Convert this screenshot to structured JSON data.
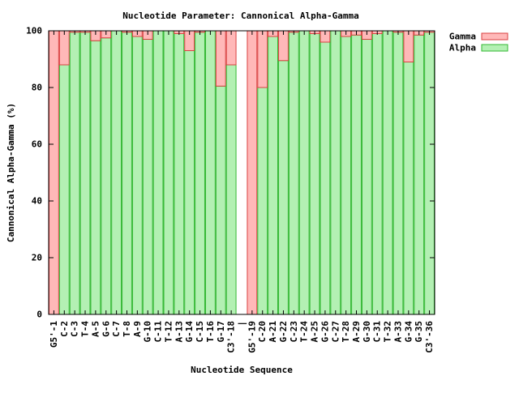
{
  "chart_data": {
    "type": "bar",
    "stacked": true,
    "title": "Nucleotide Parameter: Cannonical Alpha-Gamma",
    "xlabel": "Nucleotide Sequence",
    "ylabel": "Cannonical Alpha-Gamma (%)",
    "ylim": [
      0,
      100
    ],
    "yticks": [
      "0",
      "20",
      "40",
      "60",
      "80",
      "100"
    ],
    "grid": false,
    "legend_position": "top-right outside",
    "separator_label": "|",
    "series_colors": {
      "Alpha": {
        "fill": "#b3f0b3",
        "stroke": "#33b833"
      },
      "Gamma": {
        "fill": "#ffb8b8",
        "stroke": "#d94040"
      }
    },
    "legend": [
      {
        "name": "Gamma",
        "fill": "#ffb8b8",
        "stroke": "#d94040"
      },
      {
        "name": "Alpha",
        "fill": "#b3f0b3",
        "stroke": "#33b833"
      }
    ],
    "groups": [
      {
        "categories": [
          "G5'-1",
          "C-2",
          "C-3",
          "T-4",
          "A-5",
          "G-6",
          "C-7",
          "T-8",
          "A-9",
          "G-10",
          "C-11",
          "T-12",
          "A-13",
          "G-14",
          "C-15",
          "T-16",
          "G-17",
          "C3'-18"
        ],
        "series": [
          {
            "name": "Alpha",
            "values": [
              0,
              88,
              99.5,
              99.5,
              96.5,
              97.5,
              100,
              99.5,
              98,
              97,
              100,
              100,
              99,
              93,
              99.5,
              100,
              80.5,
              88
            ]
          },
          {
            "name": "Gamma",
            "values": [
              100,
              12,
              0.5,
              0.5,
              3.5,
              2.5,
              0,
              0.5,
              2,
              3,
              0,
              0,
              1,
              7,
              0.5,
              0,
              19.5,
              12
            ]
          }
        ]
      },
      {
        "categories": [
          "G5'-19",
          "C-20",
          "A-21",
          "G-22",
          "C-23",
          "T-24",
          "A-25",
          "G-26",
          "C-27",
          "T-28",
          "A-29",
          "G-30",
          "C-31",
          "T-32",
          "A-33",
          "G-34",
          "G-35",
          "C3'-36"
        ],
        "series": [
          {
            "name": "Alpha",
            "values": [
              0,
              80,
              98,
              89.5,
              99.5,
              100,
              99,
              96,
              100,
              98,
              98.5,
              97,
              99,
              100,
              99.5,
              89,
              98.5,
              99.5
            ]
          },
          {
            "name": "Gamma",
            "values": [
              100,
              20,
              2,
              10.5,
              0.5,
              0,
              1,
              4,
              0,
              2,
              1.5,
              3,
              1,
              0,
              0.5,
              11,
              1.5,
              0.5
            ]
          }
        ]
      }
    ]
  }
}
